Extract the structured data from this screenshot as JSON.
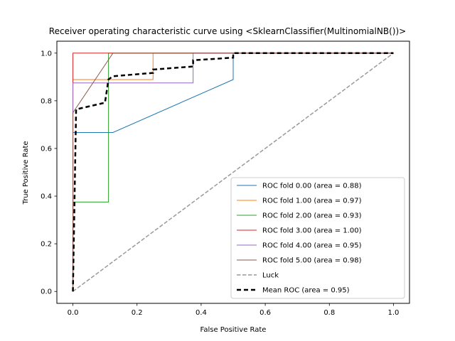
{
  "chart_data": {
    "type": "line",
    "title": "Receiver operating characteristic curve using <SklearnClassifier(MultinomialNB())>",
    "xlabel": "False Positive Rate",
    "ylabel": "True Positive Rate",
    "xlim": [
      -0.05,
      1.05
    ],
    "ylim": [
      -0.05,
      1.05
    ],
    "xticks": [
      "0.0",
      "0.2",
      "0.4",
      "0.6",
      "0.8",
      "1.0"
    ],
    "yticks": [
      "0.0",
      "0.2",
      "0.4",
      "0.6",
      "0.8",
      "1.0"
    ],
    "grid": false,
    "legend_position": "lower-right",
    "series": [
      {
        "name": "ROC fold 0.00 (area = 0.88)",
        "color": "#1f77b4",
        "style": "solid",
        "x": [
          0,
          0,
          0.125,
          0.5,
          0.5,
          1
        ],
        "y": [
          0,
          0.667,
          0.667,
          0.889,
          1.0,
          1.0
        ]
      },
      {
        "name": "ROC fold 1.00 (area = 0.97)",
        "color": "#ff7f0e",
        "style": "solid",
        "x": [
          0,
          0,
          0.25,
          0.25,
          1
        ],
        "y": [
          0,
          0.889,
          0.889,
          1.0,
          1.0
        ]
      },
      {
        "name": "ROC fold 2.00 (area = 0.93)",
        "color": "#2ca02c",
        "style": "solid",
        "x": [
          0,
          0,
          0.111,
          0.111,
          1
        ],
        "y": [
          0,
          0.375,
          0.375,
          1.0,
          1.0
        ]
      },
      {
        "name": "ROC fold 3.00 (area = 1.00)",
        "color": "#d62728",
        "style": "solid",
        "x": [
          0,
          0,
          1
        ],
        "y": [
          0,
          1.0,
          1.0
        ]
      },
      {
        "name": "ROC fold 4.00 (area = 0.95)",
        "color": "#9467bd",
        "style": "solid",
        "x": [
          0,
          0,
          0.375,
          0.375,
          1
        ],
        "y": [
          0,
          0.875,
          0.875,
          1.0,
          1.0
        ]
      },
      {
        "name": "ROC fold 5.00 (area = 0.98)",
        "color": "#8c564b",
        "style": "solid",
        "x": [
          0,
          0,
          0.125,
          1
        ],
        "y": [
          0,
          0.75,
          1.0,
          1.0
        ]
      },
      {
        "name": "Luck",
        "color": "#999999",
        "style": "dashed",
        "x": [
          0,
          1
        ],
        "y": [
          0,
          1
        ]
      },
      {
        "name": "Mean ROC (area = 0.95)",
        "color": "#000000",
        "style": "bold-dashed",
        "x": [
          0,
          0.01,
          0.1,
          0.111,
          0.125,
          0.25,
          0.25,
          0.375,
          0.375,
          0.5,
          0.5,
          1.0
        ],
        "y": [
          0,
          0.764,
          0.792,
          0.89,
          0.903,
          0.917,
          0.931,
          0.944,
          0.97,
          0.981,
          1.0,
          1.0
        ]
      }
    ]
  }
}
